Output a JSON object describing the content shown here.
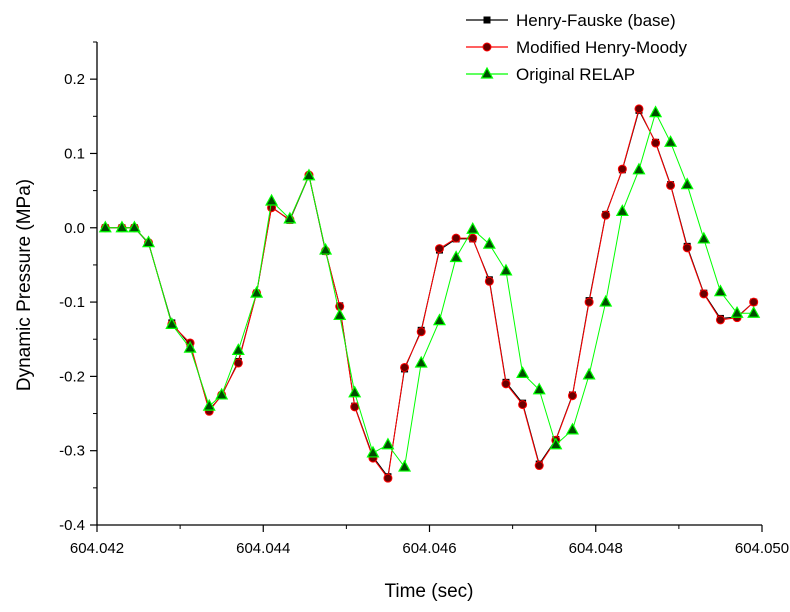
{
  "chart_data": {
    "type": "line",
    "title": "",
    "xlabel": "Time (sec)",
    "ylabel": "Dynamic Pressure (MPa)",
    "xlim": [
      604.042,
      604.05
    ],
    "ylim": [
      -0.4,
      0.25
    ],
    "x_ticks": [
      604.042,
      604.044,
      604.046,
      604.048,
      604.05
    ],
    "x_tick_labels": [
      "604.042",
      "604.044",
      "604.046",
      "604.048",
      "604.050"
    ],
    "y_ticks": [
      -0.4,
      -0.3,
      -0.2,
      -0.1,
      0.0,
      0.1,
      0.2
    ],
    "y_tick_labels": [
      "-0.4",
      "-0.3",
      "-0.2",
      "-0.1",
      "0.0",
      "0.1",
      "0.2"
    ],
    "grid": false,
    "legend_position": "top-right",
    "series": [
      {
        "name": "Henry-Fauske (base)",
        "color": "#000000",
        "marker": "square",
        "x": [
          604.0421,
          604.0423,
          604.04245,
          604.04262,
          604.0429,
          604.04312,
          604.04335,
          604.0435,
          604.0437,
          604.04392,
          604.0441,
          604.04432,
          604.04455,
          604.04475,
          604.04492,
          604.0451,
          604.04532,
          604.0455,
          604.0457,
          604.0459,
          604.04612,
          604.04632,
          604.04652,
          604.04672,
          604.04692,
          604.04712,
          604.04732,
          604.04752,
          604.04772,
          604.04792,
          604.04812,
          604.04832,
          604.04852,
          604.04872,
          604.0489,
          604.0491,
          604.0493,
          604.0495,
          604.0497,
          604.0499
        ],
        "y": [
          0.0,
          0.0,
          0.0,
          -0.021,
          -0.128,
          -0.158,
          -0.245,
          -0.226,
          -0.18,
          -0.088,
          0.028,
          0.01,
          0.07,
          -0.032,
          -0.105,
          -0.24,
          -0.308,
          -0.335,
          -0.19,
          -0.138,
          -0.03,
          -0.015,
          -0.015,
          -0.07,
          -0.208,
          -0.236,
          -0.318,
          -0.285,
          -0.225,
          -0.098,
          0.018,
          0.078,
          0.158,
          0.115,
          0.058,
          -0.025,
          -0.088,
          -0.122,
          -0.12,
          -0.1
        ]
      },
      {
        "name": "Modified Henry-Moody",
        "color": "#ff0000",
        "marker": "circle",
        "x": [
          604.0421,
          604.0423,
          604.04245,
          604.04262,
          604.0429,
          604.04312,
          604.04335,
          604.0435,
          604.0437,
          604.04392,
          604.0441,
          604.04432,
          604.04455,
          604.04475,
          604.04492,
          604.0451,
          604.04532,
          604.0455,
          604.0457,
          604.0459,
          604.04612,
          604.04632,
          604.04652,
          604.04672,
          604.04692,
          604.04712,
          604.04732,
          604.04752,
          604.04772,
          604.04792,
          604.04812,
          604.04832,
          604.04852,
          604.04872,
          604.0489,
          604.0491,
          604.0493,
          604.0495,
          604.0497,
          604.0499
        ],
        "y": [
          0.0,
          0.0,
          0.0,
          -0.02,
          -0.13,
          -0.155,
          -0.247,
          -0.225,
          -0.182,
          -0.088,
          0.027,
          0.011,
          0.071,
          -0.031,
          -0.106,
          -0.241,
          -0.31,
          -0.337,
          -0.188,
          -0.14,
          -0.028,
          -0.014,
          -0.014,
          -0.072,
          -0.21,
          -0.238,
          -0.32,
          -0.286,
          -0.226,
          -0.1,
          0.017,
          0.079,
          0.16,
          0.114,
          0.057,
          -0.027,
          -0.089,
          -0.124,
          -0.121,
          -0.1
        ]
      },
      {
        "name": "Original RELAP",
        "color": "#00ff00",
        "marker": "triangle",
        "x": [
          604.0421,
          604.0423,
          604.04245,
          604.04262,
          604.0429,
          604.04312,
          604.04335,
          604.0435,
          604.0437,
          604.04392,
          604.0441,
          604.04432,
          604.04455,
          604.04475,
          604.04492,
          604.0451,
          604.04532,
          604.0455,
          604.0457,
          604.0459,
          604.04612,
          604.04632,
          604.04652,
          604.04672,
          604.04692,
          604.04712,
          604.04732,
          604.04752,
          604.04772,
          604.04792,
          604.04812,
          604.04832,
          604.04852,
          604.04872,
          604.0489,
          604.0491,
          604.0493,
          604.0495,
          604.0497,
          604.0499
        ],
        "y": [
          0.0,
          0.0,
          0.0,
          -0.02,
          -0.13,
          -0.162,
          -0.24,
          -0.225,
          -0.165,
          -0.088,
          0.036,
          0.012,
          0.07,
          -0.03,
          -0.118,
          -0.222,
          -0.303,
          -0.292,
          -0.322,
          -0.182,
          -0.125,
          -0.04,
          -0.002,
          -0.022,
          -0.058,
          -0.196,
          -0.218,
          -0.292,
          -0.272,
          -0.198,
          -0.1,
          0.022,
          0.078,
          0.155,
          0.115,
          0.058,
          -0.015,
          -0.086,
          -0.115,
          -0.115
        ]
      }
    ]
  }
}
